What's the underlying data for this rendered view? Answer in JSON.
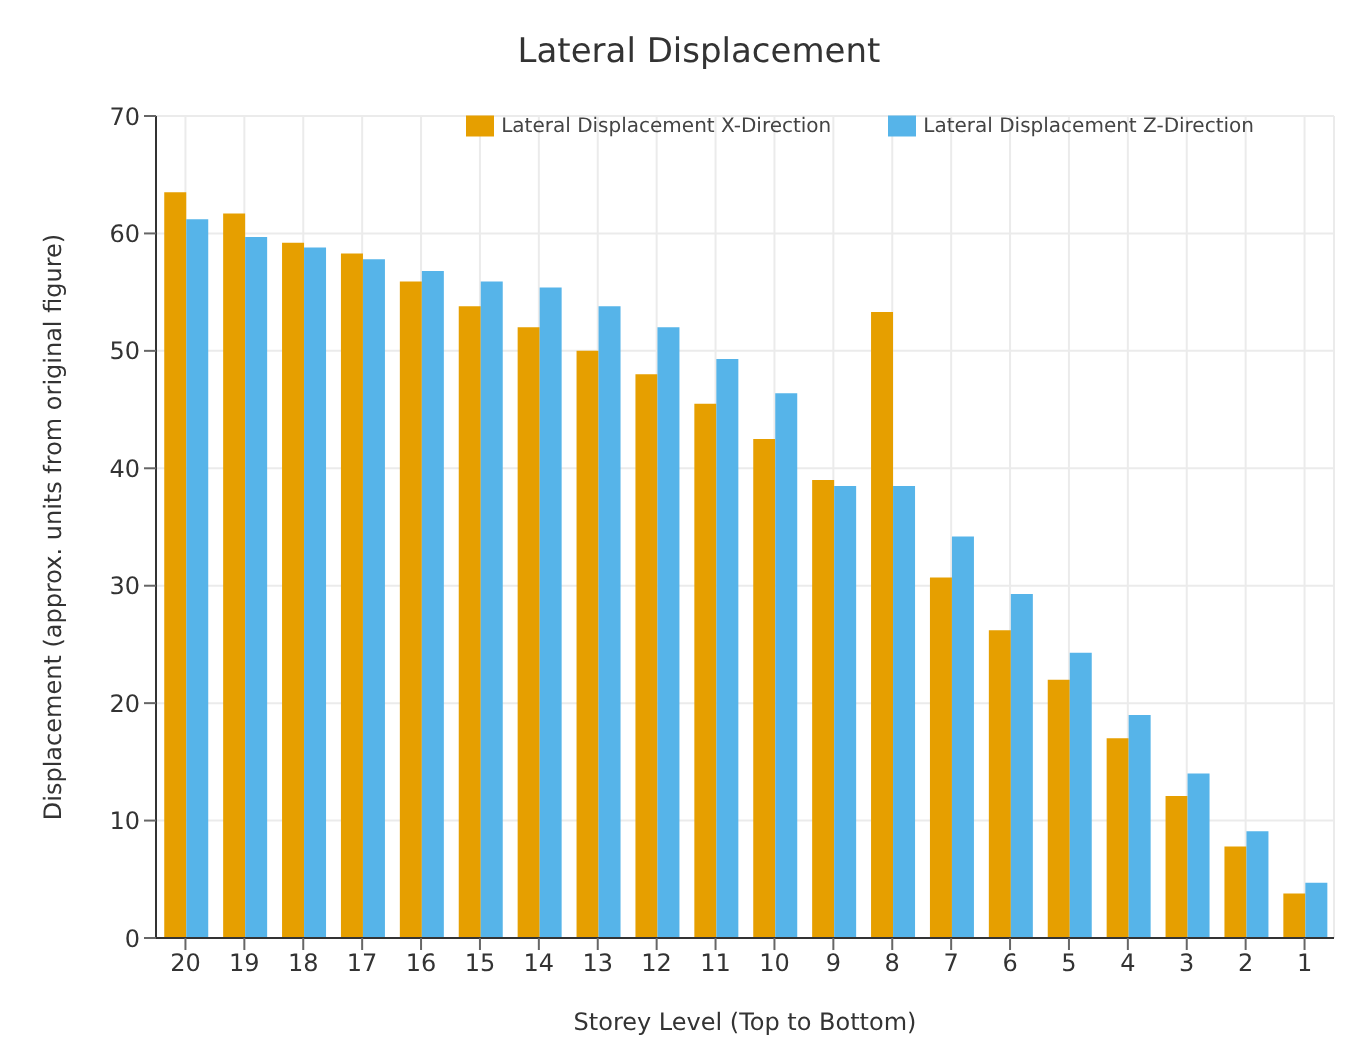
{
  "chart_data": {
    "type": "bar",
    "title": "Lateral Displacement",
    "xlabel": "Storey Level (Top to Bottom)",
    "ylabel": "Displacement (approx. units from original figure)",
    "categories": [
      "20",
      "19",
      "18",
      "17",
      "16",
      "15",
      "14",
      "13",
      "12",
      "11",
      "10",
      "9",
      "8",
      "7",
      "6",
      "5",
      "4",
      "3",
      "2",
      "1"
    ],
    "series": [
      {
        "name": "Lateral Displacement X-Direction",
        "color": "#e69f00",
        "values": [
          63.5,
          61.7,
          59.2,
          58.3,
          55.9,
          53.8,
          52,
          50,
          48,
          45.5,
          42.5,
          39,
          53.3,
          30.7,
          26.2,
          22,
          17,
          12.1,
          7.8,
          3.8
        ]
      },
      {
        "name": "Lateral Displacement Z-Direction",
        "color": "#56b4e9",
        "values": [
          61.2,
          59.7,
          58.8,
          57.8,
          56.8,
          55.9,
          55.4,
          53.8,
          52,
          49.3,
          46.4,
          38.5,
          38.5,
          34.2,
          29.3,
          24.3,
          19,
          14,
          9.1,
          4.7
        ]
      }
    ],
    "ylim": [
      0,
      70
    ],
    "yticks": [
      0,
      10,
      20,
      30,
      40,
      50,
      60,
      70
    ],
    "grid": true,
    "legend": "top right"
  }
}
